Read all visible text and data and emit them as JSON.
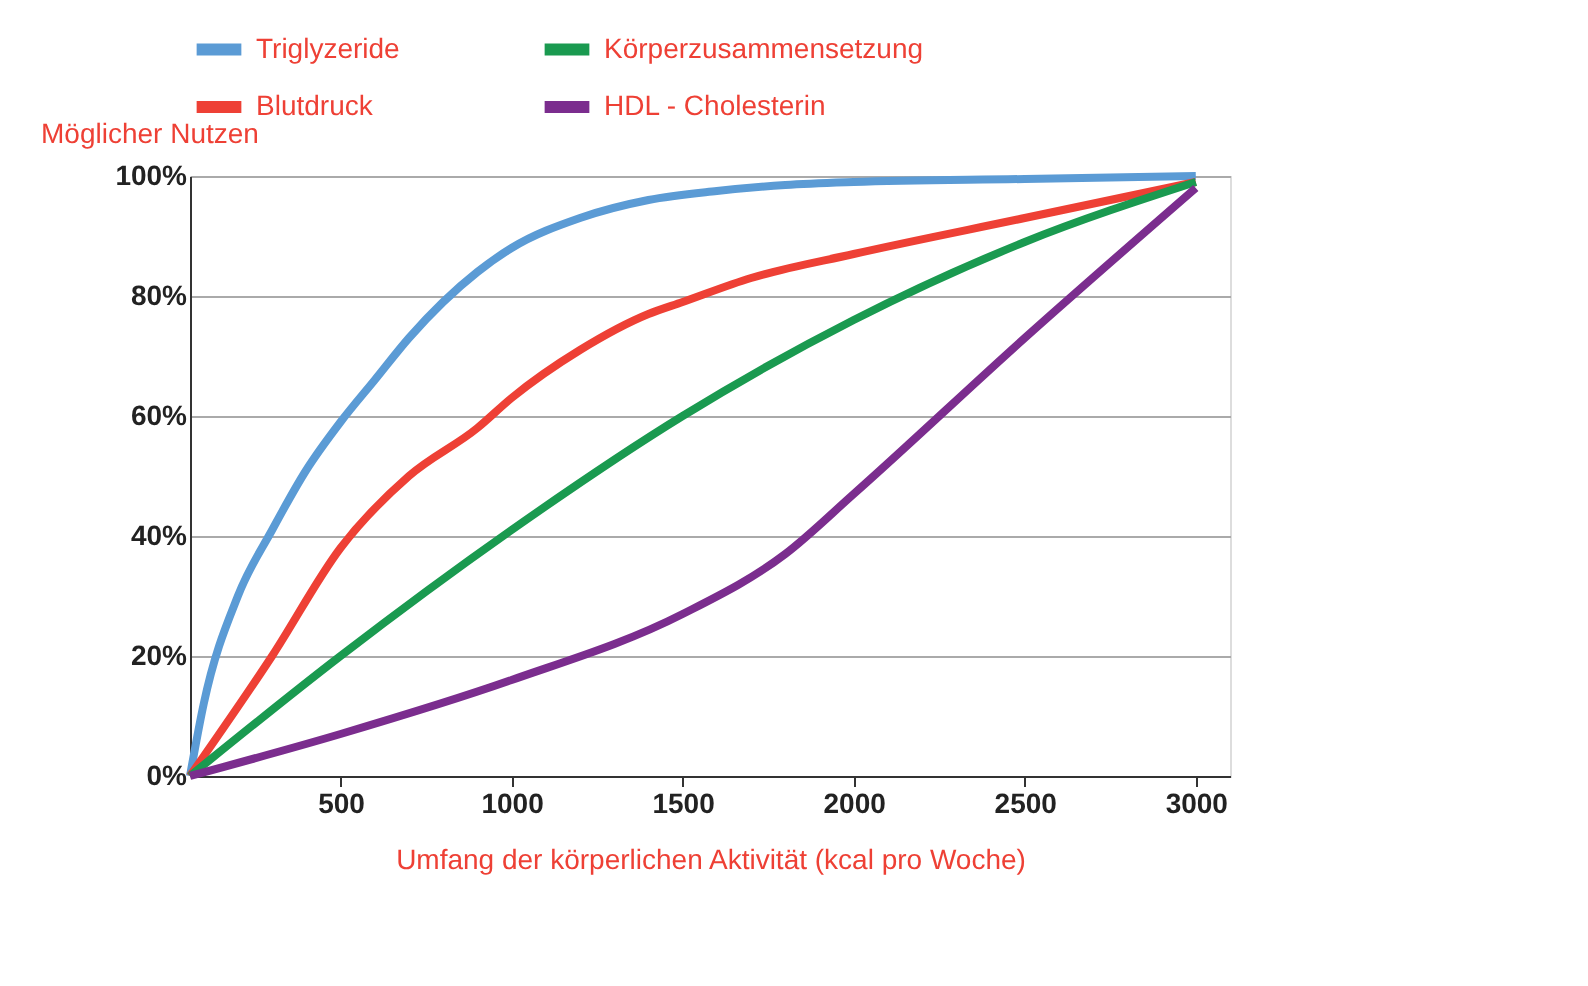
{
  "chart_data": {
    "type": "line",
    "xlabel": "Umfang der körperlichen Aktivität (kcal pro Woche)",
    "ylabel": "Möglicher Nutzen",
    "series": [
      {
        "name": "Triglyzeride",
        "color": "#5b9bd5",
        "x": [
          60,
          100,
          200,
          300,
          400,
          500,
          600,
          700,
          800,
          900,
          1000,
          1200,
          1400,
          1600,
          1800,
          2000,
          2500,
          3000
        ],
        "values": [
          0,
          12,
          30,
          41,
          51,
          59,
          66,
          73,
          79,
          84,
          88,
          93,
          96,
          97.5,
          98.5,
          99,
          99.5,
          100
        ]
      },
      {
        "name": "Blutdruck",
        "color": "#ee4035",
        "x": [
          60,
          300,
          500,
          700,
          900,
          1000,
          1200,
          1400,
          1500,
          1700,
          2000,
          2500,
          3000
        ],
        "values": [
          0,
          20,
          38,
          50,
          58,
          63,
          71,
          77,
          79,
          83,
          87,
          93,
          99
        ]
      },
      {
        "name": "Körperzusammensetzung",
        "color": "#1a9a50",
        "x": [
          60,
          500,
          1000,
          1500,
          2000,
          2500,
          3000
        ],
        "values": [
          0,
          20,
          41,
          60,
          76,
          89,
          99
        ]
      },
      {
        "name": "HDL - Cholesterin",
        "color": "#7b2d8e",
        "x": [
          60,
          500,
          1000,
          1500,
          1800,
          2000,
          2500,
          3000
        ],
        "values": [
          0,
          7,
          16,
          27,
          37,
          47,
          73,
          98
        ]
      }
    ],
    "xlim": [
      60,
      3100
    ],
    "xticks": [
      500,
      1000,
      1500,
      2000,
      2500,
      3000
    ],
    "ylim": [
      0,
      100
    ],
    "yticks": [
      {
        "value": 0,
        "label": "0%"
      },
      {
        "value": 20,
        "label": "20%"
      },
      {
        "value": 40,
        "label": "40%"
      },
      {
        "value": 60,
        "label": "60%"
      },
      {
        "value": 80,
        "label": "80%"
      },
      {
        "value": 100,
        "label": "100%"
      }
    ],
    "grid": "y",
    "legend": "top",
    "marker": "none",
    "line_style": "solid"
  }
}
